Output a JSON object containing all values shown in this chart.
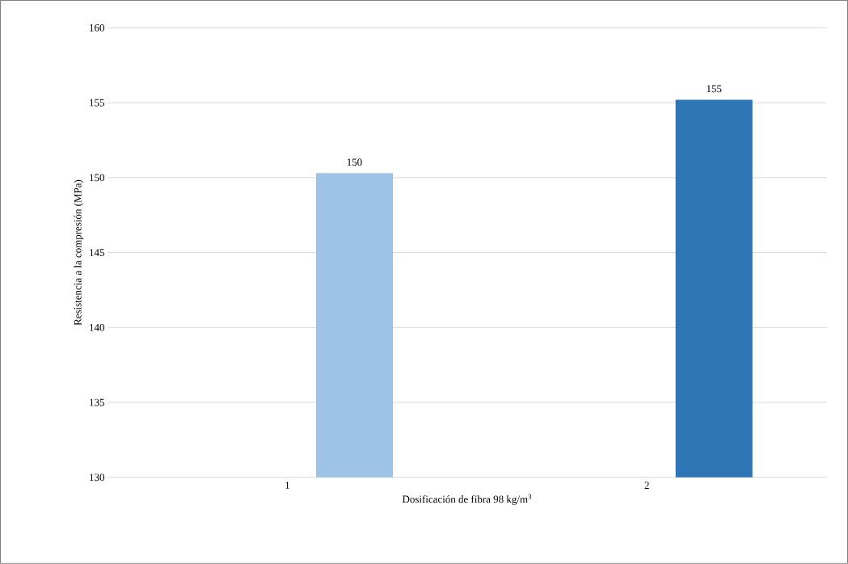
{
  "chart_data": {
    "type": "bar",
    "xlabel": "Dosificación de fibra 98 kg/m$^{3}$",
    "ylabel": "Resistencia a la compresión (MPa)",
    "categories": [
      "1",
      "2"
    ],
    "series": [
      {
        "values": [
          null,
          null
        ]
      },
      {
        "colors": [
          "#9dc3e6",
          "#2e75b6"
        ],
        "values": [
          150.3,
          155.2
        ],
        "value_labels": [
          "150",
          "155"
        ]
      }
    ],
    "ylim": [
      130,
      160
    ],
    "yticks": [
      130,
      135,
      140,
      145,
      150,
      155,
      160
    ],
    "grid": "y"
  }
}
